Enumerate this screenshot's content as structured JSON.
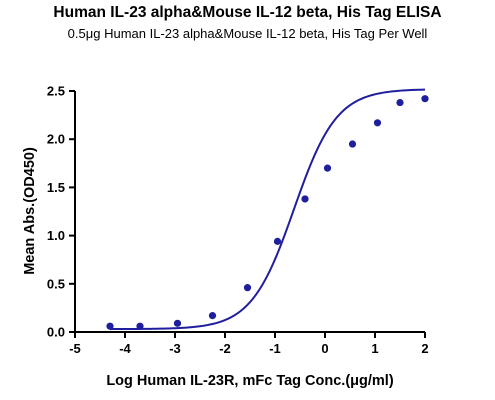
{
  "chart_data": {
    "type": "scatter",
    "title": "Human IL-23 alpha&Mouse IL-12 beta, His Tag ELISA",
    "subtitle": "0.5μg Human IL-23 alpha&Mouse IL-12 beta, His Tag Per Well",
    "xlabel": "Log Human IL-23R, mFc Tag Conc.(μg/ml)",
    "ylabel": "Mean Abs.(OD450)",
    "xlim": [
      -5,
      2
    ],
    "ylim": [
      0,
      2.5
    ],
    "x_ticks": [
      "-5",
      "-4",
      "-3",
      "-2",
      "-1",
      "0",
      "1",
      "2"
    ],
    "y_ticks": [
      "0.0",
      "0.5",
      "1.0",
      "1.5",
      "2.0",
      "2.5"
    ],
    "grid": false,
    "colors": {
      "series": "#1f1f9e",
      "axis": "#000000"
    },
    "series": [
      {
        "x": [
          -4.3,
          -3.7,
          -2.95,
          -2.25,
          -1.55,
          -0.95,
          -0.4,
          0.05,
          0.55,
          1.05,
          1.5,
          2.0
        ],
        "y": [
          0.06,
          0.06,
          0.09,
          0.17,
          0.46,
          0.94,
          1.38,
          1.7,
          1.95,
          2.17,
          2.38,
          2.42
        ],
        "fit": "four-parameter logistic"
      }
    ]
  }
}
